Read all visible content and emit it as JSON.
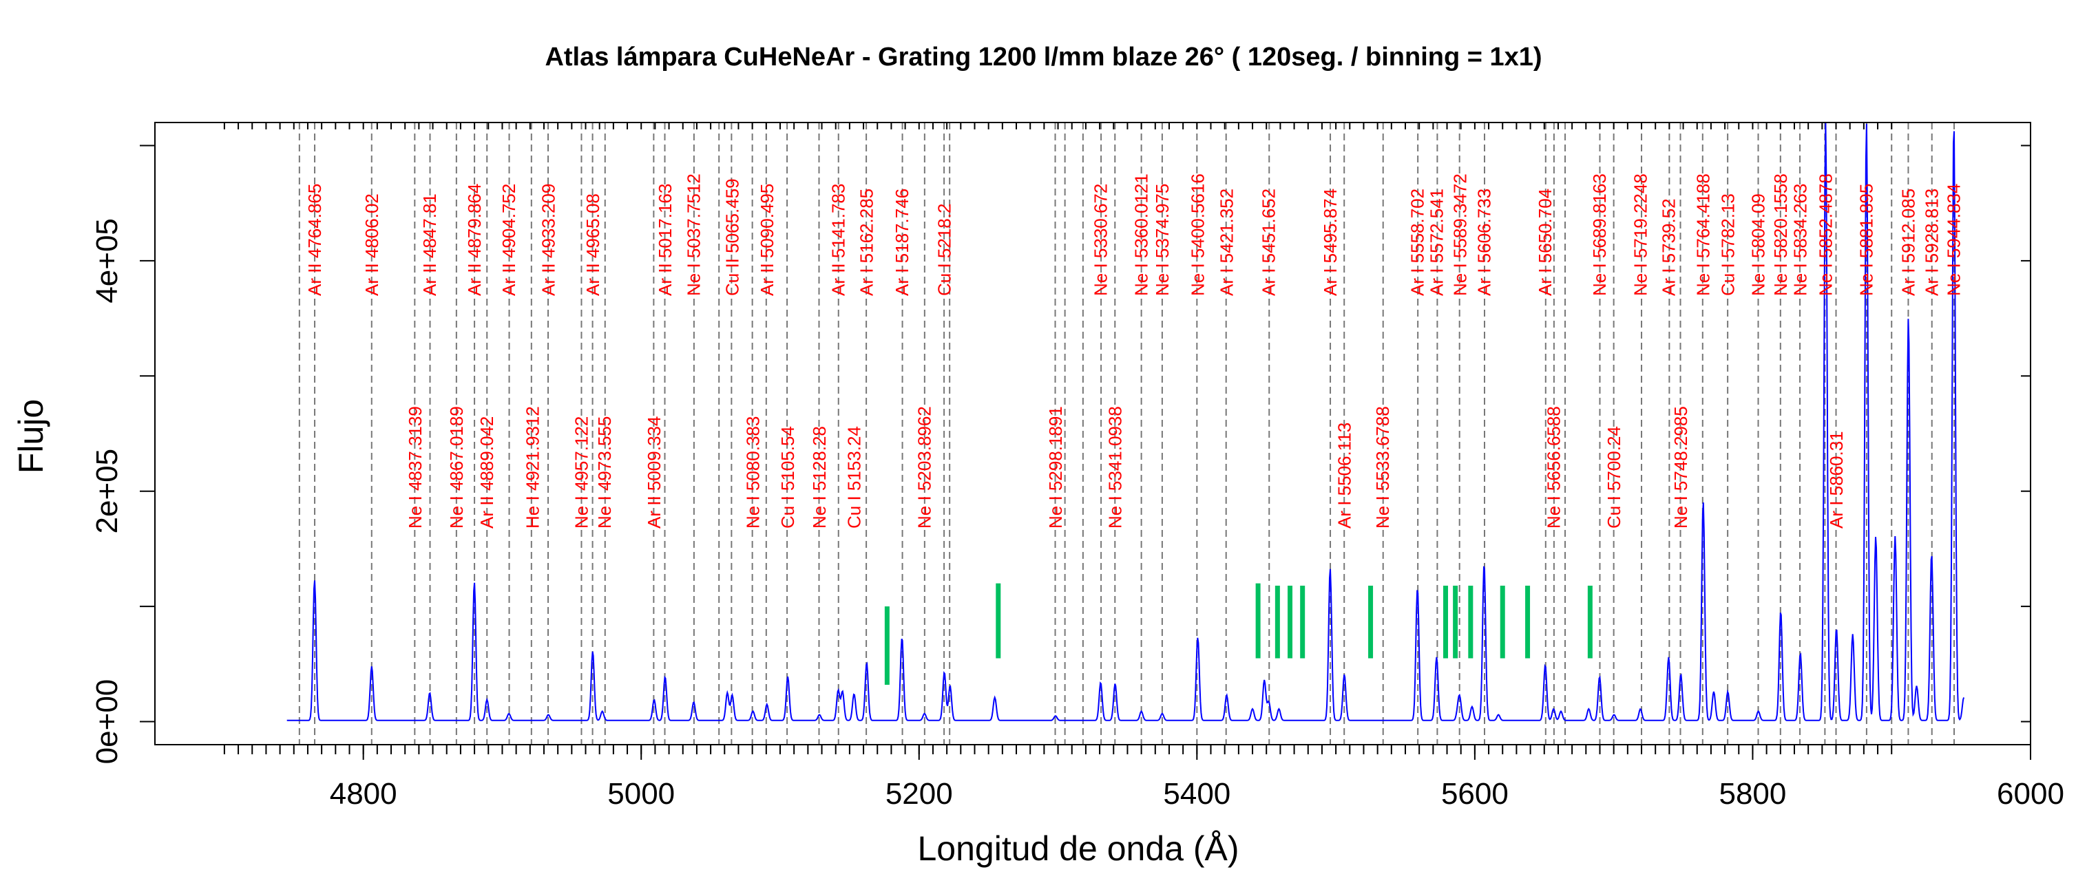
{
  "chart_data": {
    "type": "line",
    "title": "Atlas lámpara CuHeNeAr - Grating 1200 l/mm blaze 26° ( 120seg. / binning = 1x1)",
    "xlabel": "Longitud de onda (Å)",
    "ylabel": "Flujo",
    "xlim": [
      4650,
      6000
    ],
    "ylim": [
      -20000,
      520000
    ],
    "x_ticks": [
      4800,
      5000,
      5200,
      5400,
      5600,
      5800,
      6000
    ],
    "x_tick_labels": [
      "4800",
      "5000",
      "5200",
      "5400",
      "5600",
      "5800",
      "6000"
    ],
    "y_ticks": [
      0,
      200000,
      400000
    ],
    "y_tick_labels": [
      "0e+00",
      "2e+05",
      "4e+05"
    ],
    "grid": false,
    "series": [
      {
        "color": "#0000ff",
        "x_range": [
          4745,
          5952
        ],
        "baseline": 1000,
        "peaks": [
          [
            4764.9,
            122000
          ],
          [
            4806.0,
            47000
          ],
          [
            4847.8,
            24000
          ],
          [
            4879.9,
            120000
          ],
          [
            4889.0,
            18000
          ],
          [
            4904.8,
            6000
          ],
          [
            4933.2,
            5000
          ],
          [
            4965.1,
            60000
          ],
          [
            4972.0,
            8000
          ],
          [
            5009.3,
            18000
          ],
          [
            5017.2,
            38000
          ],
          [
            5037.8,
            16000
          ],
          [
            5062.0,
            24000
          ],
          [
            5065.5,
            22000
          ],
          [
            5080.4,
            8000
          ],
          [
            5090.5,
            14000
          ],
          [
            5105.5,
            38000
          ],
          [
            5128.3,
            5000
          ],
          [
            5141.8,
            26000
          ],
          [
            5144.9,
            25000
          ],
          [
            5153.2,
            23000
          ],
          [
            5162.3,
            50000
          ],
          [
            5187.7,
            72000
          ],
          [
            5203.9,
            6000
          ],
          [
            5218.2,
            42000
          ],
          [
            5222.3,
            30000
          ],
          [
            5254.5,
            20000
          ],
          [
            5298.2,
            4000
          ],
          [
            5330.7,
            33000
          ],
          [
            5341.1,
            32000
          ],
          [
            5360.0,
            8000
          ],
          [
            5375.0,
            6000
          ],
          [
            5400.6,
            72000
          ],
          [
            5421.4,
            22000
          ],
          [
            5440.0,
            10000
          ],
          [
            5448.5,
            35000
          ],
          [
            5451.7,
            16000
          ],
          [
            5459.0,
            10000
          ],
          [
            5495.9,
            132000
          ],
          [
            5506.1,
            40000
          ],
          [
            5558.7,
            115000
          ],
          [
            5572.5,
            55000
          ],
          [
            5588.0,
            10000
          ],
          [
            5589.3,
            16000
          ],
          [
            5598.0,
            12000
          ],
          [
            5606.7,
            136000
          ],
          [
            5617.0,
            5000
          ],
          [
            5650.7,
            48000
          ],
          [
            5656.7,
            10000
          ],
          [
            5662.0,
            8000
          ],
          [
            5682.0,
            10000
          ],
          [
            5689.8,
            38000
          ],
          [
            5700.2,
            5000
          ],
          [
            5719.2,
            10000
          ],
          [
            5739.5,
            55000
          ],
          [
            5748.3,
            40000
          ],
          [
            5764.4,
            190000
          ],
          [
            5772.0,
            25000
          ],
          [
            5782.1,
            25000
          ],
          [
            5804.1,
            8000
          ],
          [
            5820.2,
            95000
          ],
          [
            5834.3,
            58000
          ],
          [
            5852.5,
            520000
          ],
          [
            5860.3,
            80000
          ],
          [
            5872.0,
            75000
          ],
          [
            5881.9,
            520000
          ],
          [
            5888.6,
            160000
          ],
          [
            5902.5,
            160000
          ],
          [
            5912.1,
            350000
          ],
          [
            5918.0,
            30000
          ],
          [
            5928.8,
            145000
          ],
          [
            5944.8,
            520000
          ],
          [
            5952.0,
            20000
          ]
        ]
      }
    ],
    "reference_lines": [
      4754,
      4765,
      4806,
      4837,
      4848,
      4867,
      4880,
      4889,
      4905,
      4921,
      4933,
      4957,
      4965,
      4974,
      5009,
      5017,
      5038,
      5056,
      5065,
      5080,
      5090,
      5105,
      5128,
      5142,
      5162,
      5188,
      5204,
      5218,
      5222,
      5298,
      5305,
      5318,
      5331,
      5341,
      5360,
      5375,
      5400,
      5421,
      5452,
      5496,
      5506,
      5534,
      5559,
      5573,
      5589,
      5607,
      5651,
      5657,
      5665,
      5690,
      5700,
      5720,
      5740,
      5748,
      5764,
      5782,
      5804,
      5820,
      5834,
      5852,
      5860,
      5882,
      5900,
      5912,
      5929,
      5945
    ],
    "line_labels_top": [
      [
        "Ar II",
        "4764.865",
        4764.9
      ],
      [
        "Ar II",
        "4806.02",
        4806.0
      ],
      [
        "Ar II",
        "4847.81",
        4847.8
      ],
      [
        "Ar II",
        "4879.864",
        4879.9
      ],
      [
        "Ar II",
        "4904.752",
        4904.8
      ],
      [
        "Ar II",
        "4933.209",
        4933.2
      ],
      [
        "Ar II",
        "4965.08",
        4965.1
      ],
      [
        "Ar II",
        "5017.163",
        5017.2
      ],
      [
        "Ne I",
        "5037.7512",
        5037.8
      ],
      [
        "Cu II",
        "5065.459",
        5065.5
      ],
      [
        "Ar II",
        "5090.495",
        5090.5
      ],
      [
        "Ar II",
        "5141.783",
        5141.8
      ],
      [
        "Ar I",
        "5162.285",
        5162.3
      ],
      [
        "Ar I",
        "5187.746",
        5187.7
      ],
      [
        "Cu I",
        "5218.2",
        5218.2
      ],
      [
        "Ne I",
        "5330.672",
        5330.7
      ],
      [
        "Ne I",
        "5360.0121",
        5360.0
      ],
      [
        "Ne I",
        "5374.975",
        5375.0
      ],
      [
        "Ne I",
        "5400.5616",
        5400.6
      ],
      [
        "Ar I",
        "5421.352",
        5421.4
      ],
      [
        "Ar I",
        "5451.652",
        5451.7
      ],
      [
        "Ar I",
        "5495.874",
        5495.9
      ],
      [
        "Ar I",
        "5558.702",
        5558.7
      ],
      [
        "Ar I",
        "5572.541",
        5572.5
      ],
      [
        "Ne I",
        "5589.3472",
        5589.3
      ],
      [
        "Ar I",
        "5606.733",
        5606.7
      ],
      [
        "Ar I",
        "5650.704",
        5650.7
      ],
      [
        "Ne I",
        "5689.8163",
        5689.8
      ],
      [
        "Ne I",
        "5719.2248",
        5719.2
      ],
      [
        "Ar I",
        "5739.52",
        5739.5
      ],
      [
        "Ne I",
        "5764.4188",
        5764.4
      ],
      [
        "Cu I",
        "5782.13",
        5782.1
      ],
      [
        "Ne I",
        "5804.09",
        5804.1
      ],
      [
        "Ne I",
        "5820.1558",
        5820.2
      ],
      [
        "Ne I",
        "5834.263",
        5834.3
      ],
      [
        "Ne I",
        "5852.4878",
        5852.5
      ],
      [
        "Ne I",
        "5881.895",
        5881.9
      ],
      [
        "Ar I",
        "5912.085",
        5912.1
      ],
      [
        "Ar I",
        "5928.813",
        5928.8
      ],
      [
        "Ne I",
        "5944.834",
        5944.8
      ]
    ],
    "line_labels_bottom": [
      [
        "Ne I",
        "4837.3139",
        4837.3
      ],
      [
        "Ne I",
        "4867.0189",
        4867.0
      ],
      [
        "Ar II",
        "4889.042",
        4889.0
      ],
      [
        "He I",
        "4921.9312",
        4921.9
      ],
      [
        "Ne I",
        "4957.122",
        4957.1
      ],
      [
        "Ne I",
        "4973.555",
        4973.6
      ],
      [
        "Ar II",
        "5009.334",
        5009.3
      ],
      [
        "Ne I",
        "5080.383",
        5080.4
      ],
      [
        "Cu I",
        "5105.54",
        5105.5
      ],
      [
        "Ne I",
        "5128.28",
        5128.3
      ],
      [
        "Cu I",
        "5153.24",
        5153.2
      ],
      [
        "Ne I",
        "5203.8962",
        5203.9
      ],
      [
        "Ne I",
        "5298.1891",
        5298.2
      ],
      [
        "Ne I",
        "5341.0938",
        5341.1
      ],
      [
        "Ar I",
        "5506.113",
        5506.1
      ],
      [
        "Ne I",
        "5533.6788",
        5533.7
      ],
      [
        "Ne I",
        "5656.6588",
        5656.7
      ],
      [
        "Cu I",
        "5700.24",
        5700.2
      ],
      [
        "Ne I",
        "5748.2985",
        5748.3
      ],
      [
        "Ar I",
        "5860.31",
        5860.3
      ]
    ],
    "markers": {
      "color": "#00c060",
      "items": [
        [
          5177,
          32000,
          100000
        ],
        [
          5257,
          55000,
          120000
        ],
        [
          5444,
          55000,
          120000
        ],
        [
          5458,
          55000,
          118000
        ],
        [
          5467,
          55000,
          118000
        ],
        [
          5476,
          55000,
          118000
        ],
        [
          5525,
          55000,
          118000
        ],
        [
          5579,
          55000,
          118000
        ],
        [
          5586,
          55000,
          118000
        ],
        [
          5597,
          55000,
          118000
        ],
        [
          5620,
          55000,
          118000
        ],
        [
          5638,
          55000,
          118000
        ],
        [
          5683,
          55000,
          118000
        ]
      ]
    }
  }
}
